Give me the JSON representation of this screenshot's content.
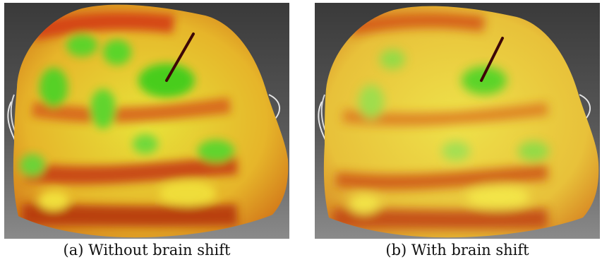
{
  "figure": {
    "panels": [
      {
        "caption": "(a) Without brain shift"
      },
      {
        "caption": "(b) With brain shift"
      }
    ]
  }
}
